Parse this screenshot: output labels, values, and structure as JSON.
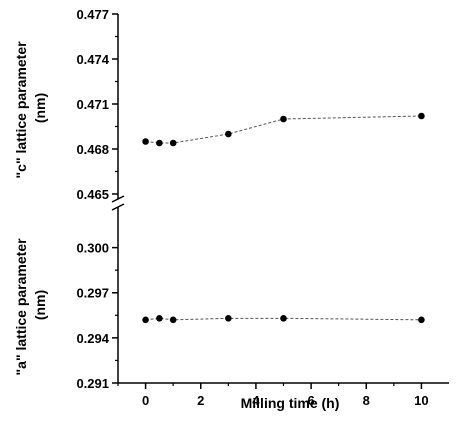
{
  "chart_data": [
    {
      "type": "line",
      "ylabel": "\"c\" lattice parameter (nm)",
      "ylabel_lines": [
        "\"c\" lattice parameter",
        "(nm)"
      ],
      "ylim": [
        0.465,
        0.477
      ],
      "yticks": [
        0.465,
        0.468,
        0.471,
        0.474,
        0.477
      ],
      "ytick_labels": [
        "0.465",
        "0.468",
        "0.471",
        "0.474",
        "0.477"
      ],
      "series": [
        {
          "x": [
            0,
            0.5,
            1,
            3,
            5,
            10
          ],
          "y": [
            0.4685,
            0.4684,
            0.4684,
            0.469,
            0.47,
            0.4702
          ]
        }
      ]
    },
    {
      "type": "line",
      "xlabel": "Milling time (h)",
      "ylabel": "\"a\" lattice parameter (nm)",
      "ylabel_lines": [
        "\"a\" lattice parameter",
        "(nm)"
      ],
      "xlim": [
        -1,
        11
      ],
      "xticks": [
        0,
        2,
        4,
        6,
        8,
        10
      ],
      "xtick_labels": [
        "0",
        "2",
        "4",
        "6",
        "8",
        "10"
      ],
      "ylim": [
        0.291,
        0.3025
      ],
      "yticks": [
        0.291,
        0.294,
        0.297,
        0.3
      ],
      "ytick_labels": [
        "0.291",
        "0.294",
        "0.297",
        "0.300"
      ],
      "series": [
        {
          "x": [
            0,
            0.5,
            1,
            3,
            5,
            10
          ],
          "y": [
            0.2952,
            0.2953,
            0.2952,
            0.2953,
            0.2953,
            0.2952
          ]
        }
      ]
    }
  ],
  "style": {
    "line_color": "#555555",
    "marker_color": "#000000",
    "line_style": "dashed"
  }
}
